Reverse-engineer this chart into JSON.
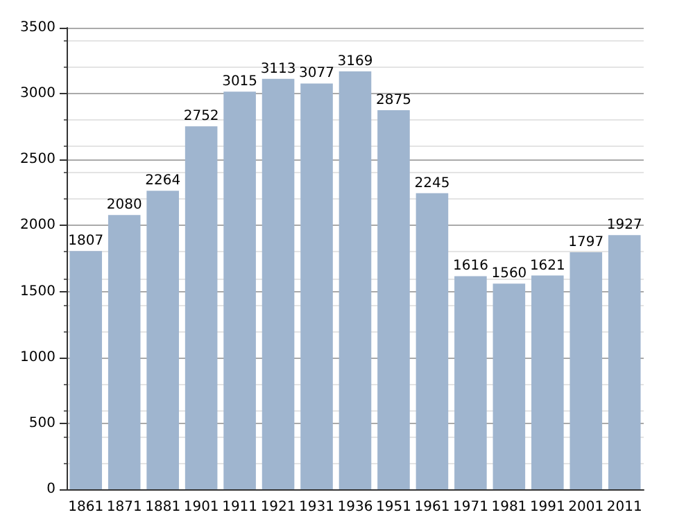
{
  "chart_data": {
    "type": "bar",
    "categories": [
      "1861",
      "1871",
      "1881",
      "1901",
      "1911",
      "1921",
      "1931",
      "1936",
      "1951",
      "1961",
      "1971",
      "1981",
      "1991",
      "2001",
      "2011"
    ],
    "values": [
      1807,
      2080,
      2264,
      2752,
      3015,
      3113,
      3077,
      3169,
      2875,
      2245,
      1616,
      1560,
      1621,
      1797,
      1927
    ],
    "color": "#9fb5cf",
    "ylim": [
      0,
      3500
    ],
    "yticks": [
      0,
      500,
      1000,
      1500,
      2000,
      2500,
      3000,
      3500
    ],
    "grid": "y",
    "data_labels": true
  }
}
